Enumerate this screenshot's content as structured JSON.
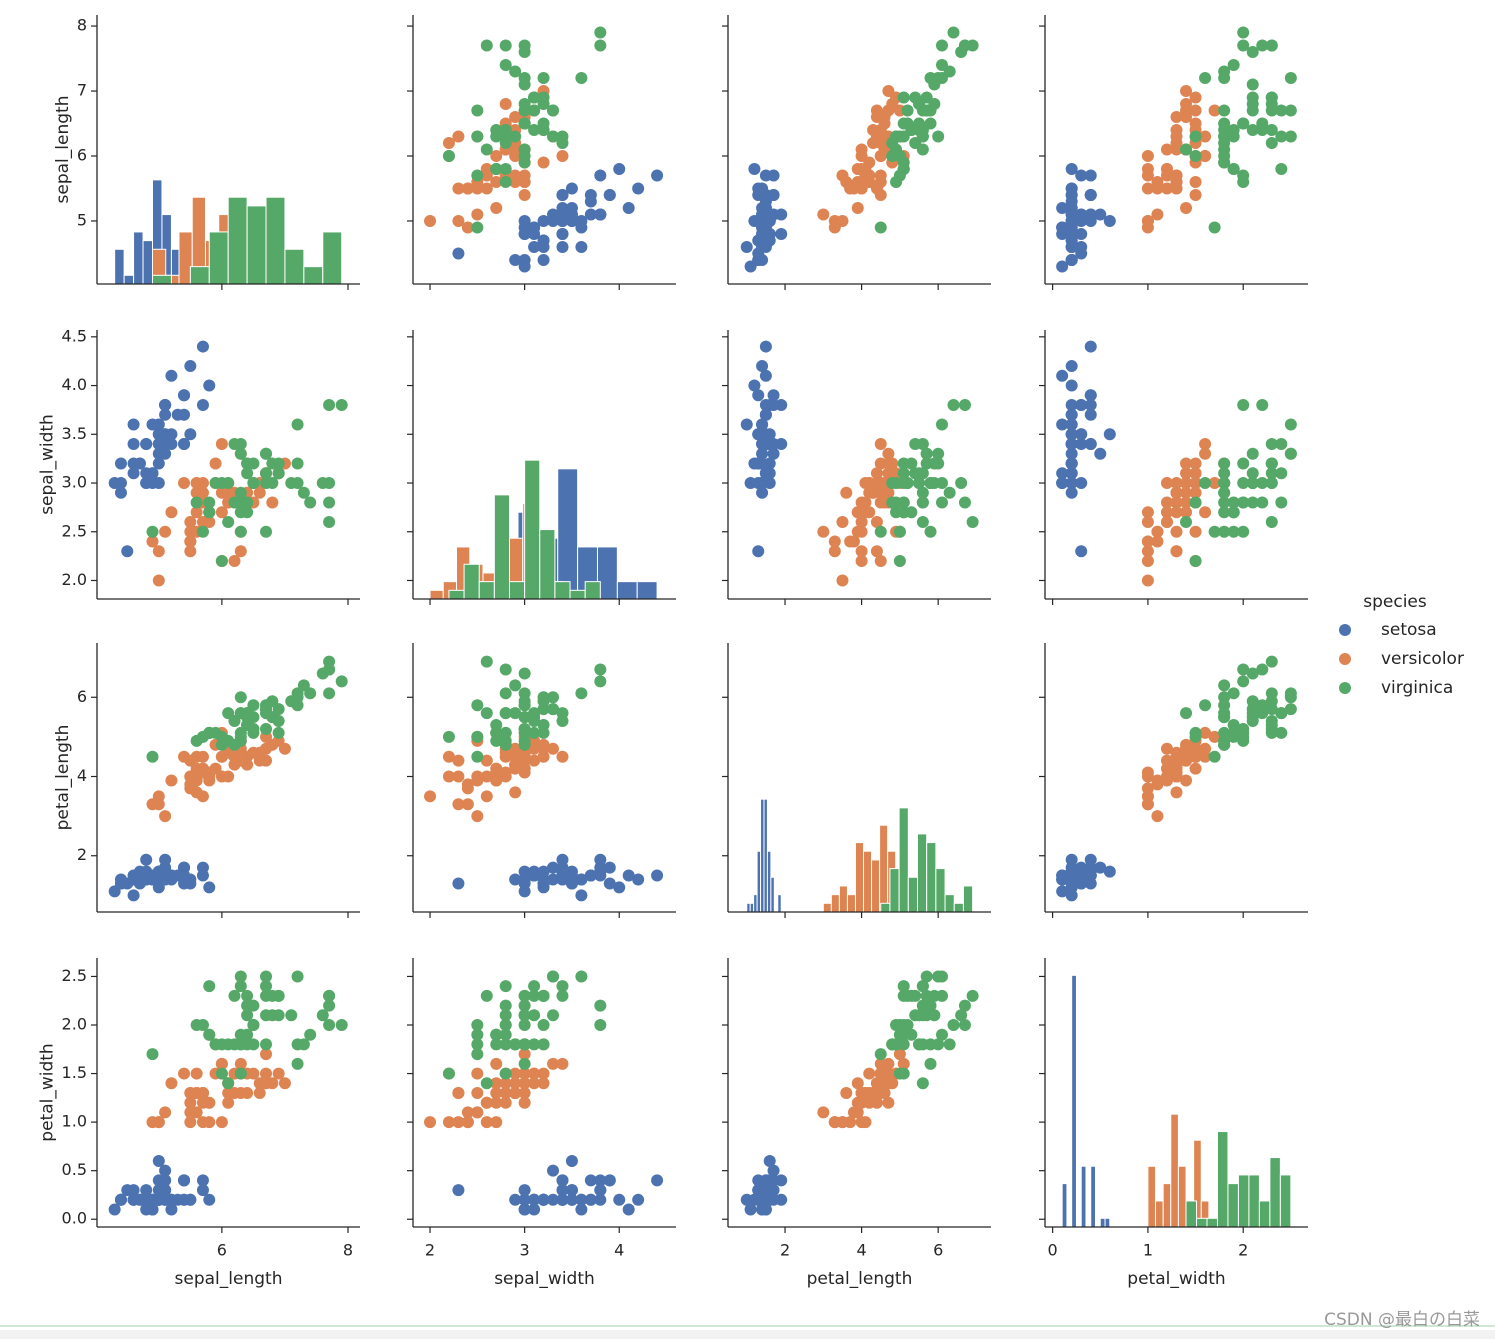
{
  "chart_data": {
    "type": "pairplot",
    "variables": [
      "sepal_length",
      "sepal_width",
      "petal_length",
      "petal_width"
    ],
    "legend_title": "species",
    "hist_ylim": [
      0,
      31
    ],
    "axes": {
      "sepal_length": {
        "xlim": [
          4.02,
          8.19
        ],
        "ylim": [
          4.03,
          8.17
        ],
        "xticks": [
          6,
          8
        ],
        "yticks": [
          5,
          6,
          7,
          8
        ]
      },
      "sepal_width": {
        "xlim": [
          1.82,
          4.6
        ],
        "ylim": [
          1.81,
          4.57
        ],
        "xticks": [
          2,
          3,
          4
        ],
        "yticks": [
          {
            "value": 2,
            "label": "2.0"
          },
          {
            "value": 2.5,
            "label": "2.5"
          },
          {
            "value": 3,
            "label": "3.0"
          },
          {
            "value": 3.5,
            "label": "3.5"
          },
          {
            "value": 4,
            "label": "4.0"
          },
          {
            "value": 4.5,
            "label": "4.5"
          }
        ]
      },
      "petal_length": {
        "xlim": [
          0.51,
          7.38
        ],
        "ylim": [
          0.58,
          7.37
        ],
        "xticks": [
          2,
          4,
          6
        ],
        "yticks": [
          2,
          4,
          6
        ]
      },
      "petal_width": {
        "xlim": [
          -0.08,
          2.68
        ],
        "ylim": [
          -0.08,
          2.69
        ],
        "xticks": [
          0,
          1,
          2
        ],
        "yticks": [
          {
            "value": 0,
            "label": "0.0"
          },
          {
            "value": 0.5,
            "label": "0.5"
          },
          {
            "value": 1,
            "label": "1.0"
          },
          {
            "value": 1.5,
            "label": "1.5"
          },
          {
            "value": 2,
            "label": "2.0"
          },
          {
            "value": 2.5,
            "label": "2.5"
          }
        ]
      }
    },
    "series": [
      {
        "name": "setosa",
        "color": "#4c72b0",
        "data": {
          "sepal_length": [
            5.1,
            4.9,
            4.7,
            4.6,
            5.0,
            5.4,
            4.6,
            5.0,
            4.4,
            4.9,
            5.4,
            4.8,
            4.8,
            4.3,
            5.8,
            5.7,
            5.4,
            5.1,
            5.7,
            5.1,
            5.4,
            5.1,
            4.6,
            5.1,
            4.8,
            5.0,
            5.0,
            5.2,
            5.2,
            4.7,
            4.8,
            5.4,
            5.2,
            5.5,
            4.9,
            5.0,
            5.5,
            4.9,
            4.4,
            5.1,
            5.0,
            4.5,
            4.4,
            5.0,
            5.1,
            4.8,
            5.1,
            4.6,
            5.3,
            5.0
          ],
          "sepal_width": [
            3.5,
            3.0,
            3.2,
            3.1,
            3.6,
            3.9,
            3.4,
            3.4,
            2.9,
            3.1,
            3.7,
            3.4,
            3.0,
            3.0,
            4.0,
            4.4,
            3.9,
            3.5,
            3.8,
            3.8,
            3.4,
            3.7,
            3.6,
            3.3,
            3.4,
            3.0,
            3.4,
            3.5,
            3.4,
            3.2,
            3.1,
            3.4,
            4.1,
            4.2,
            3.1,
            3.2,
            3.5,
            3.6,
            3.0,
            3.4,
            3.5,
            2.3,
            3.2,
            3.5,
            3.8,
            3.0,
            3.8,
            3.2,
            3.7,
            3.3
          ],
          "petal_length": [
            1.4,
            1.4,
            1.3,
            1.5,
            1.4,
            1.7,
            1.4,
            1.5,
            1.4,
            1.5,
            1.5,
            1.6,
            1.4,
            1.1,
            1.2,
            1.5,
            1.3,
            1.4,
            1.7,
            1.5,
            1.7,
            1.5,
            1.0,
            1.7,
            1.9,
            1.6,
            1.6,
            1.5,
            1.4,
            1.6,
            1.6,
            1.5,
            1.5,
            1.4,
            1.5,
            1.2,
            1.3,
            1.4,
            1.3,
            1.5,
            1.3,
            1.3,
            1.3,
            1.6,
            1.9,
            1.4,
            1.6,
            1.4,
            1.5,
            1.4
          ],
          "petal_width": [
            0.2,
            0.2,
            0.2,
            0.2,
            0.2,
            0.4,
            0.3,
            0.2,
            0.2,
            0.1,
            0.2,
            0.2,
            0.1,
            0.1,
            0.2,
            0.4,
            0.4,
            0.3,
            0.3,
            0.3,
            0.2,
            0.4,
            0.2,
            0.5,
            0.2,
            0.2,
            0.4,
            0.2,
            0.2,
            0.2,
            0.2,
            0.4,
            0.1,
            0.2,
            0.2,
            0.2,
            0.2,
            0.1,
            0.2,
            0.2,
            0.3,
            0.3,
            0.2,
            0.6,
            0.4,
            0.3,
            0.2,
            0.2,
            0.2,
            0.2
          ]
        },
        "hist": {
          "sepal_length": {
            "bins": [
              4.3,
              4.45,
              4.6,
              4.75,
              4.9,
              5.05,
              5.2,
              5.35,
              5.5,
              5.65,
              5.8
            ],
            "counts": [
              4,
              1,
              6,
              5,
              12,
              8,
              4,
              5,
              2,
              3
            ]
          },
          "sepal_width": {
            "bins": [
              2.3,
              2.51,
              2.72,
              2.93,
              3.14,
              3.35,
              3.56,
              3.77,
              3.98,
              4.19,
              4.4
            ],
            "counts": [
              1,
              0,
              1,
              10,
              7,
              15,
              6,
              6,
              2,
              2
            ]
          },
          "petal_length": {
            "bins": [
              1.0,
              1.09,
              1.18,
              1.27,
              1.36,
              1.45,
              1.54,
              1.63,
              1.72,
              1.81,
              1.9
            ],
            "counts": [
              1,
              1,
              2,
              7,
              13,
              13,
              7,
              4,
              0,
              2
            ]
          },
          "petal_width": {
            "bins": [
              0.1,
              0.15,
              0.2,
              0.25,
              0.3,
              0.35,
              0.4,
              0.45,
              0.5,
              0.55,
              0.6
            ],
            "counts": [
              5,
              0,
              29,
              0,
              7,
              0,
              7,
              0,
              1,
              1
            ]
          }
        }
      },
      {
        "name": "versicolor",
        "color": "#dd8452",
        "data": {
          "sepal_length": [
            7.0,
            6.4,
            6.9,
            5.5,
            6.5,
            5.7,
            6.3,
            4.9,
            6.6,
            5.2,
            5.0,
            5.9,
            6.0,
            6.1,
            5.6,
            6.7,
            5.6,
            5.8,
            6.2,
            5.6,
            5.9,
            6.1,
            6.3,
            6.1,
            6.4,
            6.6,
            6.8,
            6.7,
            6.0,
            5.7,
            5.5,
            5.5,
            5.8,
            6.0,
            5.4,
            6.0,
            6.7,
            6.3,
            5.6,
            5.5,
            5.5,
            6.1,
            5.8,
            5.0,
            5.6,
            5.7,
            5.7,
            6.2,
            5.1,
            5.7
          ],
          "sepal_width": [
            3.2,
            3.2,
            3.1,
            2.3,
            2.8,
            2.8,
            3.3,
            2.4,
            2.9,
            2.7,
            2.0,
            3.0,
            2.2,
            2.9,
            2.9,
            3.1,
            3.0,
            2.7,
            2.2,
            2.5,
            3.2,
            2.8,
            2.5,
            2.8,
            2.9,
            3.0,
            2.8,
            3.0,
            2.9,
            2.6,
            2.4,
            2.4,
            2.7,
            2.7,
            3.0,
            3.4,
            3.1,
            2.3,
            3.0,
            2.5,
            2.6,
            3.0,
            2.6,
            2.3,
            2.7,
            3.0,
            2.9,
            2.9,
            2.5,
            2.8
          ],
          "petal_length": [
            4.7,
            4.5,
            4.9,
            4.0,
            4.6,
            4.5,
            4.7,
            3.3,
            4.6,
            3.9,
            3.5,
            4.2,
            4.0,
            4.7,
            3.6,
            4.4,
            4.5,
            4.1,
            4.5,
            3.9,
            4.8,
            4.0,
            4.9,
            4.7,
            4.3,
            4.4,
            4.8,
            5.0,
            4.5,
            3.5,
            3.8,
            3.7,
            3.9,
            5.1,
            4.5,
            4.5,
            4.7,
            4.4,
            4.1,
            4.0,
            4.4,
            4.6,
            4.0,
            3.3,
            4.2,
            4.2,
            4.2,
            4.3,
            3.0,
            4.1
          ],
          "petal_width": [
            1.4,
            1.5,
            1.5,
            1.3,
            1.5,
            1.3,
            1.6,
            1.0,
            1.3,
            1.4,
            1.0,
            1.5,
            1.0,
            1.4,
            1.3,
            1.4,
            1.5,
            1.0,
            1.5,
            1.1,
            1.8,
            1.3,
            1.5,
            1.2,
            1.3,
            1.4,
            1.4,
            1.7,
            1.5,
            1.0,
            1.1,
            1.0,
            1.2,
            1.6,
            1.5,
            1.6,
            1.5,
            1.3,
            1.3,
            1.3,
            1.2,
            1.4,
            1.2,
            1.0,
            1.3,
            1.2,
            1.3,
            1.3,
            1.1,
            1.3
          ]
        },
        "hist": {
          "sepal_length": {
            "bins": [
              4.9,
              5.11,
              5.32,
              5.53,
              5.74,
              5.95,
              6.16,
              6.37,
              6.58,
              6.79,
              7.0
            ],
            "counts": [
              4,
              1,
              6,
              10,
              5,
              8,
              5,
              3,
              5,
              3
            ]
          },
          "sepal_width": {
            "bins": [
              2.0,
              2.14,
              2.28,
              2.42,
              2.56,
              2.7,
              2.84,
              2.98,
              3.12,
              3.26,
              3.4
            ],
            "counts": [
              1,
              2,
              6,
              4,
              3,
              11,
              7,
              11,
              3,
              2
            ]
          },
          "petal_length": {
            "bins": [
              3.0,
              3.21,
              3.42,
              3.63,
              3.84,
              4.05,
              4.26,
              4.47,
              4.68,
              4.89,
              5.1
            ],
            "counts": [
              1,
              2,
              3,
              2,
              8,
              7,
              6,
              10,
              7,
              4
            ]
          },
          "petal_width": {
            "bins": [
              1.0,
              1.08,
              1.16,
              1.24,
              1.32,
              1.4,
              1.48,
              1.56,
              1.64,
              1.72,
              1.8
            ],
            "counts": [
              7,
              3,
              5,
              13,
              7,
              0,
              10,
              3,
              1,
              1
            ]
          }
        }
      },
      {
        "name": "virginica",
        "color": "#55a868",
        "data": {
          "sepal_length": [
            6.3,
            5.8,
            7.1,
            6.3,
            6.5,
            7.6,
            4.9,
            7.3,
            6.7,
            7.2,
            6.5,
            6.4,
            6.8,
            5.7,
            5.8,
            6.4,
            6.5,
            7.7,
            7.7,
            6.0,
            6.9,
            5.6,
            7.7,
            6.3,
            6.7,
            7.2,
            6.2,
            6.1,
            6.4,
            7.2,
            7.4,
            7.9,
            6.4,
            6.3,
            6.1,
            7.7,
            6.3,
            6.4,
            6.0,
            6.9,
            6.7,
            6.9,
            5.8,
            6.8,
            6.7,
            6.7,
            6.3,
            6.5,
            6.2,
            5.9
          ],
          "sepal_width": [
            3.3,
            2.7,
            3.0,
            2.9,
            3.0,
            3.0,
            2.5,
            2.9,
            2.5,
            3.6,
            3.2,
            2.7,
            3.0,
            2.5,
            2.8,
            3.2,
            3.0,
            3.8,
            2.6,
            2.2,
            3.2,
            2.8,
            2.8,
            2.7,
            3.3,
            3.2,
            2.8,
            3.0,
            2.8,
            3.0,
            2.8,
            3.8,
            2.8,
            2.8,
            2.6,
            3.0,
            3.4,
            3.1,
            3.0,
            3.1,
            3.1,
            3.1,
            2.7,
            3.2,
            3.3,
            3.0,
            2.5,
            3.0,
            3.4,
            3.0
          ],
          "petal_length": [
            6.0,
            5.1,
            5.9,
            5.6,
            5.8,
            6.6,
            4.5,
            6.3,
            5.8,
            6.1,
            5.1,
            5.3,
            5.5,
            5.0,
            5.1,
            5.3,
            5.5,
            6.7,
            6.9,
            5.0,
            5.7,
            4.9,
            6.7,
            4.9,
            5.7,
            6.0,
            4.8,
            4.9,
            5.6,
            5.8,
            6.1,
            6.4,
            5.6,
            5.1,
            5.6,
            6.1,
            5.6,
            5.5,
            4.8,
            5.4,
            5.6,
            5.1,
            5.1,
            5.9,
            5.7,
            5.2,
            5.0,
            5.2,
            5.4,
            5.1
          ],
          "petal_width": [
            2.5,
            1.9,
            2.1,
            1.8,
            2.2,
            2.1,
            1.7,
            1.8,
            1.8,
            2.5,
            2.0,
            1.9,
            2.1,
            2.0,
            2.4,
            2.3,
            1.8,
            2.2,
            2.3,
            1.5,
            2.3,
            2.0,
            2.0,
            1.8,
            2.1,
            1.8,
            1.8,
            1.8,
            2.1,
            1.6,
            1.9,
            2.0,
            2.2,
            1.5,
            1.4,
            2.3,
            2.4,
            1.8,
            1.8,
            2.1,
            2.4,
            2.3,
            1.9,
            2.3,
            2.5,
            2.3,
            1.9,
            2.0,
            2.3,
            1.8
          ]
        },
        "hist": {
          "sepal_length": {
            "bins": [
              4.9,
              5.2,
              5.5,
              5.8,
              6.1,
              6.4,
              6.7,
              7.0,
              7.3,
              7.6,
              7.9
            ],
            "counts": [
              1,
              0,
              2,
              6,
              10,
              9,
              10,
              4,
              2,
              6
            ]
          },
          "sepal_width": {
            "bins": [
              2.2,
              2.36,
              2.52,
              2.68,
              2.84,
              3.0,
              3.16,
              3.32,
              3.48,
              3.64,
              3.8
            ],
            "counts": [
              1,
              4,
              2,
              12,
              2,
              16,
              8,
              2,
              1,
              2
            ]
          },
          "petal_length": {
            "bins": [
              4.5,
              4.74,
              4.98,
              5.22,
              5.46,
              5.7,
              5.94,
              6.18,
              6.42,
              6.66,
              6.9
            ],
            "counts": [
              1,
              5,
              12,
              4,
              9,
              8,
              5,
              2,
              1,
              3
            ]
          },
          "petal_width": {
            "bins": [
              1.4,
              1.51,
              1.62,
              1.73,
              1.84,
              1.95,
              2.06,
              2.17,
              2.28,
              2.39,
              2.5
            ],
            "counts": [
              3,
              1,
              1,
              11,
              5,
              6,
              6,
              3,
              8,
              6
            ]
          }
        }
      }
    ],
    "watermark": "CSDN @最白の白菜"
  }
}
